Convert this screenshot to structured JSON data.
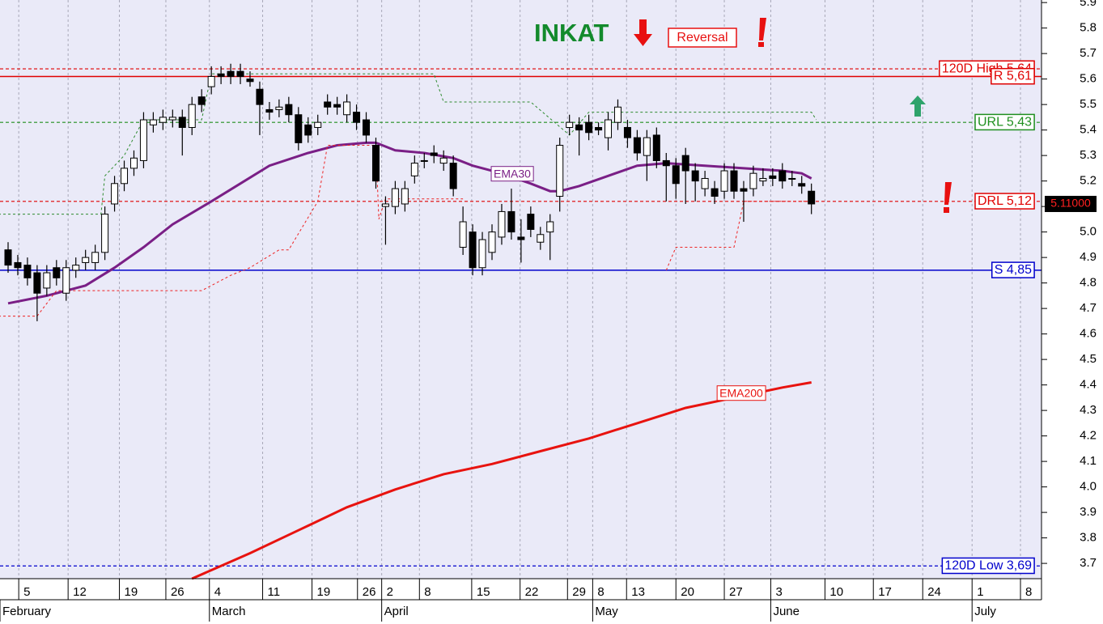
{
  "chart_data": {
    "type": "candlestick",
    "title": "INKAT",
    "annotation": "Reversal",
    "categories": [
      null,
      null,
      null,
      null,
      null,
      null,
      null,
      null,
      null,
      null,
      null,
      null,
      null,
      null,
      null,
      null,
      null,
      null,
      null,
      null,
      null,
      null,
      null,
      null,
      null,
      null,
      null,
      null,
      null,
      null,
      null,
      null,
      null,
      null,
      null,
      null,
      null,
      null,
      null,
      null,
      null,
      null,
      null,
      null,
      null,
      null,
      null,
      null,
      null,
      null,
      null,
      null,
      null,
      null,
      null,
      null,
      null,
      null,
      null,
      null,
      null,
      null,
      null,
      null,
      null,
      null,
      null,
      null,
      null,
      null,
      null,
      null,
      null,
      null,
      null,
      null,
      null,
      null,
      null,
      null,
      null,
      null,
      null,
      null
    ],
    "open": [
      4.93,
      4.88,
      4.87,
      4.84,
      4.78,
      4.86,
      4.76,
      4.85,
      4.88,
      4.88,
      4.92,
      5.11,
      5.19,
      5.25,
      5.28,
      5.42,
      5.43,
      5.44,
      5.45,
      5.41,
      5.53,
      5.57,
      5.62,
      5.63,
      5.63,
      5.6,
      5.56,
      5.48,
      5.48,
      5.5,
      5.46,
      5.42,
      5.41,
      5.51,
      5.5,
      5.46,
      5.47,
      5.44,
      5.34,
      5.1,
      5.1,
      5.11,
      5.22,
      5.28,
      5.31,
      5.27,
      5.27,
      4.94,
      5.0,
      4.86,
      4.92,
      4.98,
      5.08,
      4.98,
      5.07,
      4.96,
      5.0,
      5.14,
      5.41,
      5.42,
      5.43,
      5.41,
      5.37,
      5.43,
      5.41,
      5.37,
      5.3,
      5.38,
      5.28,
      5.26,
      5.3,
      5.24,
      5.17,
      5.17,
      5.16,
      5.24,
      5.17,
      5.17,
      5.2,
      5.22,
      5.24,
      5.21,
      5.19,
      5.16
    ],
    "high": [
      4.96,
      4.91,
      4.9,
      4.87,
      4.87,
      4.89,
      4.89,
      4.9,
      4.93,
      4.95,
      5.1,
      5.22,
      5.28,
      5.32,
      5.47,
      5.47,
      5.48,
      5.48,
      5.48,
      5.53,
      5.56,
      5.65,
      5.65,
      5.66,
      5.66,
      5.63,
      5.59,
      5.51,
      5.52,
      5.53,
      5.49,
      5.45,
      5.46,
      5.54,
      5.53,
      5.54,
      5.5,
      5.47,
      5.37,
      5.14,
      5.2,
      5.2,
      5.3,
      5.31,
      5.34,
      5.32,
      5.3,
      5.1,
      5.03,
      5.0,
      5.03,
      5.11,
      5.17,
      5.05,
      5.1,
      5.02,
      5.07,
      5.37,
      5.46,
      5.45,
      5.46,
      5.43,
      5.47,
      5.52,
      5.44,
      5.4,
      5.4,
      5.41,
      5.31,
      5.29,
      5.33,
      5.27,
      5.24,
      5.2,
      5.27,
      5.27,
      5.2,
      5.26,
      5.25,
      5.25,
      5.27,
      5.24,
      5.22,
      5.19
    ],
    "low": [
      4.84,
      4.83,
      4.79,
      4.65,
      4.75,
      4.79,
      4.73,
      4.82,
      4.85,
      4.85,
      4.89,
      5.08,
      5.16,
      5.22,
      5.25,
      5.39,
      5.4,
      5.41,
      5.3,
      5.38,
      5.47,
      5.54,
      5.58,
      5.58,
      5.58,
      5.57,
      5.38,
      5.44,
      5.45,
      5.43,
      5.32,
      5.35,
      5.38,
      5.46,
      5.46,
      5.43,
      5.4,
      5.35,
      5.17,
      4.95,
      5.07,
      5.08,
      5.19,
      5.25,
      5.27,
      5.24,
      5.14,
      4.91,
      4.83,
      4.83,
      4.89,
      4.95,
      4.97,
      4.88,
      4.98,
      4.93,
      4.89,
      5.08,
      5.38,
      5.3,
      5.36,
      5.38,
      5.32,
      5.4,
      5.33,
      5.28,
      5.2,
      5.25,
      5.12,
      5.13,
      5.11,
      5.12,
      5.14,
      5.11,
      5.13,
      5.13,
      5.04,
      5.14,
      5.18,
      5.18,
      5.17,
      5.18,
      5.15,
      5.07
    ],
    "close": [
      4.87,
      4.86,
      4.82,
      4.76,
      4.84,
      4.82,
      4.86,
      4.87,
      4.9,
      4.92,
      5.07,
      5.19,
      5.25,
      5.29,
      5.44,
      5.44,
      5.45,
      5.45,
      5.41,
      5.5,
      5.5,
      5.61,
      5.61,
      5.61,
      5.61,
      5.59,
      5.5,
      5.47,
      5.49,
      5.46,
      5.35,
      5.38,
      5.43,
      5.49,
      5.49,
      5.51,
      5.43,
      5.38,
      5.2,
      5.11,
      5.17,
      5.17,
      5.27,
      5.28,
      5.3,
      5.29,
      5.17,
      5.04,
      4.86,
      4.97,
      5.0,
      5.08,
      5.0,
      4.97,
      5.01,
      4.99,
      5.04,
      5.34,
      5.43,
      5.4,
      5.39,
      5.4,
      5.44,
      5.49,
      5.37,
      5.31,
      5.37,
      5.28,
      5.26,
      5.19,
      5.24,
      5.2,
      5.21,
      5.14,
      5.24,
      5.16,
      5.16,
      5.23,
      5.21,
      5.21,
      5.2,
      5.21,
      5.18,
      5.11
    ],
    "series": [
      {
        "name": "EMA30",
        "color": "#7a1f86",
        "style": "solid",
        "width": 3,
        "x": [
          0,
          4,
          8,
          11,
          14,
          17,
          21,
          24,
          27,
          31,
          34,
          37,
          38,
          40,
          43,
          46,
          48,
          51,
          54,
          56,
          57,
          59,
          62,
          65,
          68,
          72,
          76,
          80,
          82,
          83
        ],
        "values": [
          4.72,
          4.75,
          4.79,
          4.86,
          4.94,
          5.03,
          5.12,
          5.19,
          5.26,
          5.31,
          5.34,
          5.35,
          5.35,
          5.32,
          5.31,
          5.29,
          5.26,
          5.23,
          5.19,
          5.16,
          5.16,
          5.18,
          5.22,
          5.26,
          5.27,
          5.26,
          5.25,
          5.24,
          5.23,
          5.21
        ]
      },
      {
        "name": "EMA200",
        "color": "#e8130f",
        "style": "solid",
        "width": 3,
        "x": [
          19,
          25,
          30,
          35,
          40,
          45,
          50,
          55,
          60,
          65,
          70,
          75,
          80,
          83
        ],
        "values": [
          3.64,
          3.74,
          3.83,
          3.92,
          3.99,
          4.05,
          4.09,
          4.14,
          4.19,
          4.25,
          4.31,
          4.35,
          4.39,
          4.41
        ]
      },
      {
        "name": null,
        "color": "#2e8b2e",
        "style": "dashed",
        "width": 1,
        "x": [
          -1,
          9.6,
          10,
          12,
          14,
          20,
          21,
          44,
          45,
          54,
          58,
          60,
          83,
          83.5
        ],
        "values": [
          5.07,
          5.07,
          5.22,
          5.3,
          5.44,
          5.44,
          5.62,
          5.62,
          5.51,
          5.51,
          5.38,
          5.47,
          5.47,
          5.44
        ]
      },
      {
        "name": null,
        "color": "#ee2222",
        "style": "dashed",
        "width": 1,
        "x": [
          -1,
          3,
          5,
          7,
          20,
          23,
          25,
          28,
          29,
          32,
          33,
          38,
          38.3,
          39,
          40,
          47,
          null,
          68,
          69,
          75,
          76,
          83
        ],
        "values": [
          4.67,
          4.67,
          4.77,
          4.77,
          4.77,
          4.83,
          4.86,
          4.93,
          4.93,
          5.12,
          5.34,
          5.34,
          5.05,
          5.13,
          5.13,
          5.13,
          null,
          4.85,
          4.94,
          4.94,
          5.12,
          5.12
        ]
      }
    ],
    "levels": [
      {
        "label": "120D High 5,64",
        "value": 5.64,
        "color": "#e00000",
        "style": "dashed"
      },
      {
        "label": "R 5,61",
        "value": 5.61,
        "color": "#e00000",
        "style": "solid"
      },
      {
        "label": "URL 5,43",
        "value": 5.43,
        "color": "#1f8f1f",
        "style": "dashed"
      },
      {
        "label": "DRL 5,12",
        "value": 5.12,
        "color": "#e00000",
        "style": "dashed"
      },
      {
        "label": "S 4,85",
        "value": 4.85,
        "color": "#0000cc",
        "style": "solid"
      },
      {
        "label": "120D Low 3,69",
        "value": 3.69,
        "color": "#0000cc",
        "style": "dashed"
      }
    ],
    "last_price": {
      "value": 5.11,
      "label": "5.11000"
    },
    "ylim": [
      3.64,
      5.91
    ],
    "yticks": [
      3.7,
      3.8,
      3.9,
      {
        "value": 4,
        "label": "4.0"
      },
      4.1,
      4.2,
      4.3,
      4.4,
      4.5,
      4.6,
      4.7,
      4.8,
      4.9,
      {
        "value": 5,
        "label": "5.0"
      },
      5.1,
      5.2,
      5.3,
      5.4,
      5.5,
      5.6,
      5.7,
      5.8,
      5.9
    ],
    "xticks": [
      {
        "value": 1.1,
        "label": "5"
      },
      {
        "value": 6.2,
        "label": "12"
      },
      {
        "value": 11.5,
        "label": "19"
      },
      {
        "value": 16.3,
        "label": "26"
      },
      {
        "value": 20.8,
        "label": "4"
      },
      {
        "value": 26.3,
        "label": "11"
      },
      {
        "value": 31.4,
        "label": "19"
      },
      {
        "value": 36.1,
        "label": "26"
      },
      {
        "value": 38.6,
        "label": "2"
      },
      {
        "value": 42.5,
        "label": "8"
      },
      {
        "value": 47.9,
        "label": "15"
      },
      {
        "value": 52.9,
        "label": "22"
      },
      {
        "value": 57.8,
        "label": "29"
      },
      {
        "value": 60.4,
        "label": "8"
      },
      {
        "value": 63.9,
        "label": "13"
      },
      {
        "value": 69,
        "label": "20"
      },
      {
        "value": 74,
        "label": "27"
      },
      {
        "value": 78.8,
        "label": "3"
      },
      {
        "value": 84.4,
        "label": "10"
      },
      {
        "value": 89.4,
        "label": "17"
      },
      {
        "value": 94.5,
        "label": "24"
      },
      {
        "value": 99.6,
        "label": "1"
      },
      {
        "value": 104.6,
        "label": "8"
      }
    ],
    "months": [
      {
        "value": -0.84,
        "label": "February"
      },
      {
        "value": 20.8,
        "label": "March"
      },
      {
        "value": 38.6,
        "label": "April"
      },
      {
        "value": 60.4,
        "label": "May"
      },
      {
        "value": 78.8,
        "label": "June"
      },
      {
        "value": 99.6,
        "label": "July"
      }
    ],
    "grid": true
  }
}
